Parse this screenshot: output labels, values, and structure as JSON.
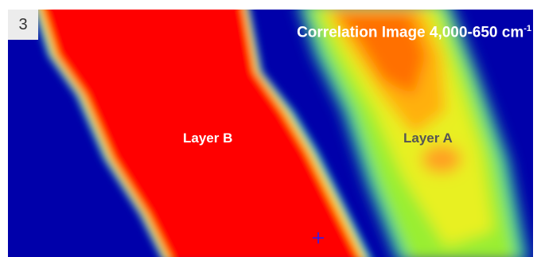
{
  "panel_number": "3",
  "title": {
    "text": "Correlation Image 4,000-650 cm",
    "superscript": "-1"
  },
  "labels": [
    "Layer B",
    "Layer A"
  ]
}
